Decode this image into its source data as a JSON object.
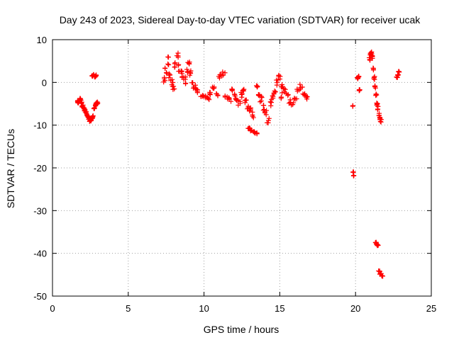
{
  "chart_data": {
    "type": "scatter",
    "title": "Day 243 of 2023, Sidereal Day-to-day VTEC variation (SDTVAR) for receiver ucak",
    "xlabel": "GPS time / hours",
    "ylabel": "SDTVAR / TECUs",
    "xlim": [
      0,
      25
    ],
    "ylim": [
      -50,
      10
    ],
    "xticks": [
      0,
      5,
      10,
      15,
      20,
      25
    ],
    "yticks": [
      10,
      0,
      -10,
      -20,
      -30,
      -40,
      -50
    ],
    "grid": true,
    "marker": "+",
    "color": "#ff0000",
    "clusters": [
      {
        "x_start": 1.6,
        "x_end": 3.0,
        "y_values": [
          -4.5,
          -4.6,
          -4.2,
          -4.0,
          -4.8,
          -5.5,
          -6.0,
          -6.5,
          -7.0,
          -7.5,
          -8.0,
          -8.5,
          -9.0,
          -8.8,
          -8.5,
          -8.0,
          -6.0,
          -5.5,
          -5.0,
          -4.8
        ],
        "spread": 0.5
      },
      {
        "x_start": 2.6,
        "x_end": 2.9,
        "y_values": [
          1.5,
          1.8,
          1.4,
          1.6
        ],
        "spread": 0.3
      },
      {
        "x_start": 7.3,
        "x_end": 9.3,
        "y_values": [
          1.0,
          3.0,
          5.0,
          2.0,
          0.0,
          -1.0,
          4.0,
          6.0,
          3.5,
          2.5,
          1.0,
          0.5,
          3.0,
          4.5,
          2.0,
          -0.5
        ],
        "spread": 2.0
      },
      {
        "x_start": 9.3,
        "x_end": 11.8,
        "y_values": [
          -1.0,
          -2.0,
          -3.0,
          -3.5,
          -4.0,
          -2.5,
          -1.5,
          -3.0,
          1.5,
          2.0,
          -3.5,
          -4.0
        ],
        "spread": 1.0
      },
      {
        "x_start": 11.8,
        "x_end": 13.3,
        "y_values": [
          -2.0,
          -3.5,
          -4.5,
          -5.0,
          -3.0,
          -2.0,
          -4.0,
          -5.5,
          -6.0,
          -7.5
        ],
        "spread": 1.5
      },
      {
        "x_start": 12.9,
        "x_end": 13.5,
        "y_values": [
          -10.8,
          -11.3,
          -11.6,
          -11.9
        ],
        "spread": 0.4
      },
      {
        "x_start": 13.4,
        "x_end": 15.2,
        "y_values": [
          -1.5,
          -3.0,
          -4.0,
          -6.0,
          -7.0,
          -9.0,
          -5.0,
          -3.5,
          -2.0,
          0.0,
          1.5,
          -3.0
        ],
        "spread": 1.5
      },
      {
        "x_start": 15.0,
        "x_end": 16.9,
        "y_values": [
          -1.0,
          -2.0,
          -3.0,
          -4.5,
          -5.0,
          -3.5,
          -2.0,
          -1.0,
          -2.5,
          -3.5
        ],
        "spread": 1.2
      },
      {
        "x_start": 19.8,
        "x_end": 19.9,
        "y_values": [
          -5.5,
          -21.0,
          -21.8
        ],
        "spread": 0.2
      },
      {
        "x_start": 20.1,
        "x_end": 20.3,
        "y_values": [
          1.0,
          1.4,
          -1.8
        ],
        "spread": 0.3
      },
      {
        "x_start": 20.9,
        "x_end": 21.7,
        "y_values": [
          5.5,
          6.5,
          7.0,
          6.0,
          3.0,
          1.0,
          -1.0,
          -3.0,
          -5.0,
          -6.0,
          -7.5,
          -8.5,
          -9.0
        ],
        "spread": 0.8
      },
      {
        "x_start": 21.3,
        "x_end": 21.5,
        "y_values": [
          -37.5,
          -37.9,
          -38.1
        ],
        "spread": 0.2
      },
      {
        "x_start": 21.5,
        "x_end": 21.8,
        "y_values": [
          -44.2,
          -44.8,
          -45.3
        ],
        "spread": 0.25
      },
      {
        "x_start": 22.7,
        "x_end": 22.9,
        "y_values": [
          1.2,
          1.8,
          2.5
        ],
        "spread": 0.3
      }
    ]
  }
}
